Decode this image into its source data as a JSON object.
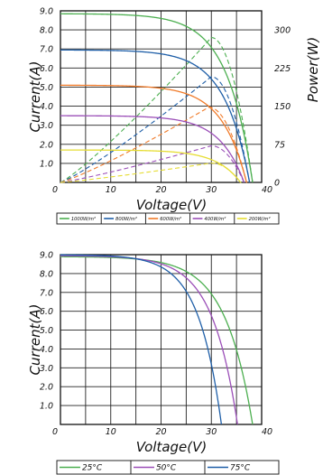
{
  "chart_data": [
    {
      "type": "line",
      "xlabel": "Voltage(V)",
      "ylabel": "Current(A)",
      "y2label": "Power(W)",
      "xlim": [
        0,
        40
      ],
      "ylim": [
        0,
        9
      ],
      "y2lim": [
        0,
        337.5
      ],
      "xticks": [
        {
          "v": 0,
          "label": "0"
        },
        {
          "v": 10,
          "label": "10"
        },
        {
          "v": 20,
          "label": "20"
        },
        {
          "v": 30,
          "label": "30"
        },
        {
          "v": 40,
          "label": "40"
        }
      ],
      "yticks": [
        {
          "v": 1,
          "label": "1.0"
        },
        {
          "v": 2,
          "label": "2.0"
        },
        {
          "v": 3,
          "label": "3.0"
        },
        {
          "v": 4,
          "label": "4.0"
        },
        {
          "v": 5,
          "label": "5.0"
        },
        {
          "v": 6,
          "label": "6.0"
        },
        {
          "v": 7,
          "label": "7.0"
        },
        {
          "v": 8,
          "label": "8.0"
        },
        {
          "v": 9,
          "label": "9.0"
        }
      ],
      "y2ticks": [
        {
          "v": 0,
          "label": "0"
        },
        {
          "v": 75,
          "label": "75"
        },
        {
          "v": 150,
          "label": "150"
        },
        {
          "v": 225,
          "label": "225"
        },
        {
          "v": 300,
          "label": "300"
        }
      ],
      "grid": true,
      "legend_position": "bottom",
      "series": [
        {
          "name": "1000W/m²",
          "color": "#4caf50",
          "isc": 8.85,
          "voc": 38.2,
          "current_k": 7.5,
          "power_peak": 285,
          "vmp": 30
        },
        {
          "name": "800W/m²",
          "color": "#1f5fa8",
          "isc": 6.95,
          "voc": 37.6,
          "current_k": 7.5,
          "power_peak": 208,
          "vmp": 30
        },
        {
          "name": "600W/m²",
          "color": "#f07b2a",
          "isc": 5.1,
          "voc": 37.0,
          "current_k": 7.5,
          "power_peak": 148,
          "vmp": 29.5
        },
        {
          "name": "400W/m²",
          "color": "#9b4fb8",
          "isc": 3.5,
          "voc": 36.5,
          "current_k": 7.5,
          "power_peak": 72,
          "vmp": 30
        },
        {
          "name": "200W/m²",
          "color": "#e6dd33",
          "isc": 1.7,
          "voc": 35.8,
          "current_k": 7.5,
          "power_peak": 38,
          "vmp": 30
        }
      ]
    },
    {
      "type": "line",
      "xlabel": "Voltage(V)",
      "ylabel": "Current(A)",
      "xlim": [
        0,
        40
      ],
      "ylim": [
        0,
        9
      ],
      "xticks": [
        {
          "v": 0,
          "label": "0"
        },
        {
          "v": 10,
          "label": "10"
        },
        {
          "v": 20,
          "label": "20"
        },
        {
          "v": 30,
          "label": "30"
        },
        {
          "v": 40,
          "label": "40"
        }
      ],
      "yticks": [
        {
          "v": 1,
          "label": "1.0"
        },
        {
          "v": 2,
          "label": "2.0"
        },
        {
          "v": 3,
          "label": "3.0"
        },
        {
          "v": 4,
          "label": "4.0"
        },
        {
          "v": 5,
          "label": "5.0"
        },
        {
          "v": 6,
          "label": "6.0"
        },
        {
          "v": 7,
          "label": "7.0"
        },
        {
          "v": 8,
          "label": "8.0"
        },
        {
          "v": 9,
          "label": "9.0"
        }
      ],
      "grid": true,
      "legend_position": "bottom",
      "series": [
        {
          "name": "25°C",
          "color": "#4caf50",
          "isc": 8.9,
          "voc": 38.2,
          "current_k": 7
        },
        {
          "name": "50°C",
          "color": "#9b4fb8",
          "isc": 8.95,
          "voc": 35.2,
          "current_k": 7
        },
        {
          "name": "75°C",
          "color": "#1f5fa8",
          "isc": 9.0,
          "voc": 32.0,
          "current_k": 7
        }
      ]
    }
  ]
}
